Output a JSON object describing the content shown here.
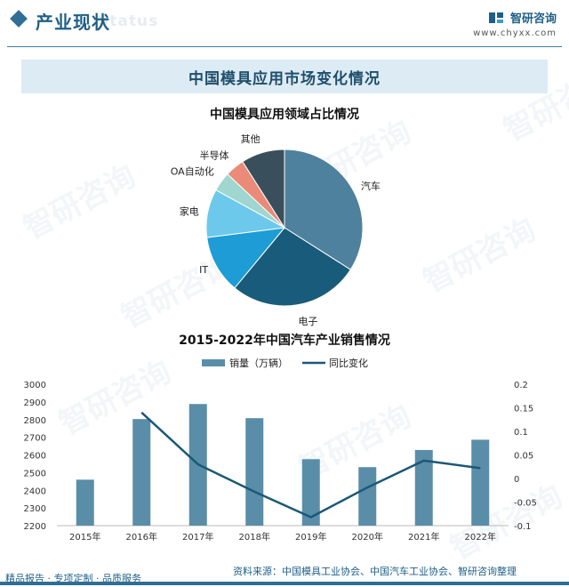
{
  "header": {
    "section_title": "产业现状",
    "section_watermark": "Status",
    "brand_name": "智研咨询",
    "brand_url": "www.chyxx.com"
  },
  "main_title": "中国模具应用市场变化情况",
  "watermark_text": "智研咨询",
  "chart_data": [
    {
      "type": "pie",
      "title": "中国模具应用领域占比情况",
      "categories": [
        "汽车",
        "电子",
        "IT",
        "家电",
        "OA自动化",
        "半导体",
        "其他"
      ],
      "values": [
        34,
        27,
        12,
        10,
        4,
        4,
        9
      ],
      "colors": [
        "#4e819d",
        "#195b7a",
        "#1d9cd6",
        "#6cc9ec",
        "#9fd6cf",
        "#e98b78",
        "#3a4f5c"
      ]
    },
    {
      "type": "bar+line",
      "title": "2015-2022年中国汽车产业销售情况",
      "categories": [
        "2015年",
        "2016年",
        "2017年",
        "2018年",
        "2019年",
        "2020年",
        "2021年",
        "2022年"
      ],
      "series": [
        {
          "name": "销量（万辆）",
          "type": "bar",
          "axis": "left",
          "color": "#5a8ea8",
          "values": [
            2460,
            2803,
            2888,
            2808,
            2576,
            2531,
            2628,
            2686
          ]
        },
        {
          "name": "同比变化",
          "type": "line",
          "axis": "right",
          "color": "#1b5877",
          "values": [
            null,
            0.14,
            0.03,
            -0.028,
            -0.082,
            -0.019,
            0.038,
            0.022
          ]
        }
      ],
      "y_left": {
        "min": 2200,
        "max": 3000,
        "ticks": [
          2200,
          2300,
          2400,
          2500,
          2600,
          2700,
          2800,
          2900,
          3000
        ]
      },
      "y_right": {
        "min": -0.1,
        "max": 0.2,
        "ticks": [
          -0.1,
          -0.05,
          0,
          0.05,
          0.1,
          0.15,
          0.2
        ]
      }
    }
  ],
  "footer": {
    "left": "精品报告 · 专项定制 · 品质服务",
    "right": "资料来源：中国模具工业协会、中国汽车工业协会、智研咨询整理"
  }
}
